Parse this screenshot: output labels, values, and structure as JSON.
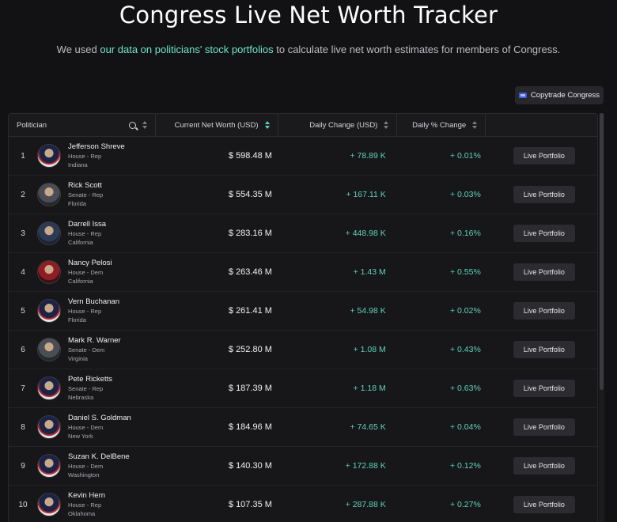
{
  "header": {
    "title": "Congress Live Net Worth Tracker",
    "subtitle_pre": "We used ",
    "subtitle_link": "our data on politicians' stock portfolios",
    "subtitle_post": " to calculate live net worth estimates for members of Congress."
  },
  "toolbar": {
    "copytrade_label": "Copytrade Congress"
  },
  "table": {
    "columns": {
      "politician": "Politician",
      "net_worth": "Current Net Worth (USD)",
      "daily_change": "Daily Change (USD)",
      "daily_pct": "Daily % Change"
    },
    "action_label": "Live Portfolio",
    "rows": [
      {
        "rank": "1",
        "name": "Jefferson Shreve",
        "chamber": "House - Rep",
        "state": "Indiana",
        "net_worth": "$ 598.48 M",
        "daily_change": "+ 78.89 K",
        "daily_pct": "+ 0.01%"
      },
      {
        "rank": "2",
        "name": "Rick Scott",
        "chamber": "Senate - Rep",
        "state": "Florida",
        "net_worth": "$ 554.35 M",
        "daily_change": "+ 167.11 K",
        "daily_pct": "+ 0.03%"
      },
      {
        "rank": "3",
        "name": "Darrell Issa",
        "chamber": "House - Rep",
        "state": "California",
        "net_worth": "$ 283.16 M",
        "daily_change": "+ 448.98 K",
        "daily_pct": "+ 0.16%"
      },
      {
        "rank": "4",
        "name": "Nancy Pelosi",
        "chamber": "House - Dem",
        "state": "California",
        "net_worth": "$ 263.46 M",
        "daily_change": "+ 1.43 M",
        "daily_pct": "+ 0.55%"
      },
      {
        "rank": "5",
        "name": "Vern Buchanan",
        "chamber": "House - Rep",
        "state": "Florida",
        "net_worth": "$ 261.41 M",
        "daily_change": "+ 54.98 K",
        "daily_pct": "+ 0.02%"
      },
      {
        "rank": "6",
        "name": "Mark R. Warner",
        "chamber": "Senate - Dem",
        "state": "Virginia",
        "net_worth": "$ 252.80 M",
        "daily_change": "+ 1.08 M",
        "daily_pct": "+ 0.43%"
      },
      {
        "rank": "7",
        "name": "Pete Ricketts",
        "chamber": "Senate - Rep",
        "state": "Nebraska",
        "net_worth": "$ 187.39 M",
        "daily_change": "+ 1.18 M",
        "daily_pct": "+ 0.63%"
      },
      {
        "rank": "8",
        "name": "Daniel S. Goldman",
        "chamber": "House - Dem",
        "state": "New York",
        "net_worth": "$ 184.96 M",
        "daily_change": "+ 74.65 K",
        "daily_pct": "+ 0.04%"
      },
      {
        "rank": "9",
        "name": "Suzan K. DelBene",
        "chamber": "House - Dem",
        "state": "Washington",
        "net_worth": "$ 140.30 M",
        "daily_change": "+ 172.88 K",
        "daily_pct": "+ 0.12%"
      },
      {
        "rank": "10",
        "name": "Kevin Hern",
        "chamber": "House - Rep",
        "state": "Oklahoma",
        "net_worth": "$ 107.35 M",
        "daily_change": "+ 287.88 K",
        "daily_pct": "+ 0.27%"
      }
    ]
  },
  "colors": {
    "background": "#121214",
    "accent": "#5ed4b4",
    "link": "#6ee7c8"
  }
}
